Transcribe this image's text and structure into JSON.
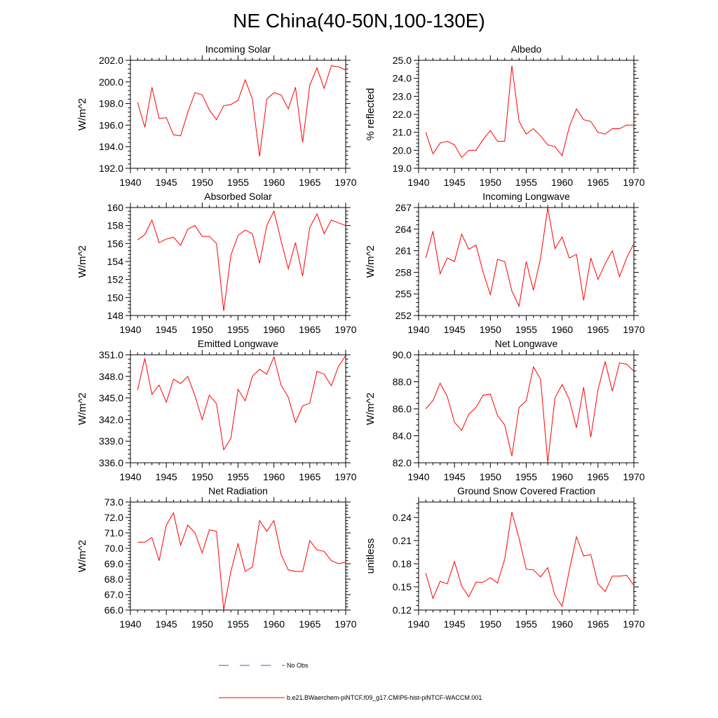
{
  "page": {
    "title": "NE China(40-50N,100-130E)"
  },
  "legend": {
    "entries": [
      {
        "label": "No Obs",
        "color": "#4a55c8",
        "style": "dashed"
      },
      {
        "label": "b.e21.BWaerchem-piNTCF.f09_g17.CMIP6-hist-piNTCF-WACCM.001",
        "color": "#ff0000",
        "style": "solid"
      }
    ]
  },
  "chart_data": [
    {
      "type": "line",
      "title": "Incoming Solar",
      "ylabel": "W/m^2",
      "xlim": [
        1940,
        1970
      ],
      "ylim": [
        192,
        202
      ],
      "xticks": [
        1940,
        1945,
        1950,
        1955,
        1960,
        1965,
        1970
      ],
      "yticks": [
        192,
        194,
        196,
        198,
        200,
        202
      ],
      "ytick_labels": [
        "192.0",
        "194.0",
        "196.0",
        "198.0",
        "200.0",
        "202.0"
      ],
      "series": [
        {
          "color": "#ff0000",
          "x": [
            1941,
            1942,
            1943,
            1944,
            1945,
            1946,
            1947,
            1948,
            1949,
            1950,
            1951,
            1952,
            1953,
            1954,
            1955,
            1956,
            1957,
            1958,
            1959,
            1960,
            1961,
            1962,
            1963,
            1964,
            1965,
            1966,
            1967,
            1968,
            1969,
            1970
          ],
          "y": [
            198.1,
            195.8,
            199.5,
            196.6,
            196.7,
            195.1,
            195.0,
            197.2,
            199.0,
            198.8,
            197.4,
            196.5,
            197.8,
            197.9,
            198.3,
            200.2,
            198.4,
            193.1,
            198.4,
            199.0,
            198.8,
            197.5,
            199.5,
            194.4,
            199.7,
            201.3,
            199.4,
            201.5,
            201.4,
            201.1
          ]
        }
      ]
    },
    {
      "type": "line",
      "title": "Albedo",
      "ylabel": "% reflected",
      "xlim": [
        1940,
        1970
      ],
      "ylim": [
        19,
        25
      ],
      "xticks": [
        1940,
        1945,
        1950,
        1955,
        1960,
        1965,
        1970
      ],
      "yticks": [
        19,
        20,
        21,
        22,
        23,
        24,
        25
      ],
      "ytick_labels": [
        "19.0",
        "20.0",
        "21.0",
        "22.0",
        "23.0",
        "24.0",
        "25.0"
      ],
      "series": [
        {
          "color": "#ff0000",
          "x": [
            1941,
            1942,
            1943,
            1944,
            1945,
            1946,
            1947,
            1948,
            1949,
            1950,
            1951,
            1952,
            1953,
            1954,
            1955,
            1956,
            1957,
            1958,
            1959,
            1960,
            1961,
            1962,
            1963,
            1964,
            1965,
            1966,
            1967,
            1968,
            1969,
            1970
          ],
          "y": [
            21.0,
            19.8,
            20.4,
            20.5,
            20.3,
            19.6,
            20.0,
            20.0,
            20.6,
            21.1,
            20.5,
            20.5,
            24.7,
            21.6,
            20.9,
            21.2,
            20.8,
            20.3,
            20.2,
            19.7,
            21.3,
            22.3,
            21.7,
            21.6,
            21.0,
            20.9,
            21.2,
            21.2,
            21.4,
            21.4
          ]
        }
      ]
    },
    {
      "type": "line",
      "title": "Absorbed Solar",
      "ylabel": "W/m^2",
      "xlim": [
        1940,
        1970
      ],
      "ylim": [
        148,
        160
      ],
      "xticks": [
        1940,
        1945,
        1950,
        1955,
        1960,
        1965,
        1970
      ],
      "yticks": [
        148,
        150,
        152,
        154,
        156,
        158,
        160
      ],
      "ytick_labels": [
        "148",
        "150",
        "152",
        "154",
        "156",
        "158",
        "160"
      ],
      "series": [
        {
          "color": "#ff0000",
          "x": [
            1941,
            1942,
            1943,
            1944,
            1945,
            1946,
            1947,
            1948,
            1949,
            1950,
            1951,
            1952,
            1953,
            1954,
            1955,
            1956,
            1957,
            1958,
            1959,
            1960,
            1961,
            1962,
            1963,
            1964,
            1965,
            1966,
            1967,
            1968,
            1969,
            1970
          ],
          "y": [
            156.4,
            157.0,
            158.6,
            156.1,
            156.5,
            156.7,
            155.8,
            157.6,
            158.0,
            156.8,
            156.8,
            156.0,
            148.5,
            154.7,
            156.9,
            157.5,
            157.1,
            153.8,
            158.0,
            159.6,
            156.3,
            153.2,
            156.1,
            152.4,
            157.8,
            159.3,
            157.1,
            158.6,
            158.3,
            158.0
          ]
        }
      ]
    },
    {
      "type": "line",
      "title": "Incoming Longwave",
      "ylabel": "W/m^2",
      "xlim": [
        1940,
        1970
      ],
      "ylim": [
        252,
        267
      ],
      "xticks": [
        1940,
        1945,
        1950,
        1955,
        1960,
        1965,
        1970
      ],
      "yticks": [
        252,
        255,
        258,
        261,
        264,
        267
      ],
      "ytick_labels": [
        "252",
        "255",
        "258",
        "261",
        "264",
        "267"
      ],
      "series": [
        {
          "color": "#ff0000",
          "x": [
            1941,
            1942,
            1943,
            1944,
            1945,
            1946,
            1947,
            1948,
            1949,
            1950,
            1951,
            1952,
            1953,
            1954,
            1955,
            1956,
            1957,
            1958,
            1959,
            1960,
            1961,
            1962,
            1963,
            1964,
            1965,
            1966,
            1967,
            1968,
            1969,
            1970
          ],
          "y": [
            260.0,
            263.7,
            257.8,
            260.0,
            259.5,
            263.3,
            261.2,
            261.8,
            258.0,
            254.9,
            259.8,
            259.5,
            255.4,
            253.3,
            259.5,
            255.5,
            260.0,
            267.0,
            261.3,
            262.9,
            260.0,
            260.5,
            254.1,
            260.0,
            257.0,
            259.2,
            261.0,
            257.4,
            260.0,
            262.0
          ]
        }
      ]
    },
    {
      "type": "line",
      "title": "Emitted Longwave",
      "ylabel": "W/m^2",
      "xlim": [
        1940,
        1970
      ],
      "ylim": [
        336,
        351
      ],
      "xticks": [
        1940,
        1945,
        1950,
        1955,
        1960,
        1965,
        1970
      ],
      "yticks": [
        336,
        339,
        342,
        345,
        348,
        351
      ],
      "ytick_labels": [
        "336.0",
        "339.0",
        "342.0",
        "345.0",
        "348.0",
        "351.0"
      ],
      "series": [
        {
          "color": "#ff0000",
          "x": [
            1941,
            1942,
            1943,
            1944,
            1945,
            1946,
            1947,
            1948,
            1949,
            1950,
            1951,
            1952,
            1953,
            1954,
            1955,
            1956,
            1957,
            1958,
            1959,
            1960,
            1961,
            1962,
            1963,
            1964,
            1965,
            1966,
            1967,
            1968,
            1969,
            1970
          ],
          "y": [
            346.1,
            350.5,
            345.5,
            346.8,
            344.4,
            347.6,
            347.0,
            348.0,
            345.3,
            342.0,
            345.4,
            344.2,
            337.8,
            339.4,
            346.2,
            344.6,
            348.0,
            349.0,
            348.3,
            350.7,
            346.8,
            345.1,
            341.6,
            343.9,
            344.3,
            348.7,
            348.3,
            346.7,
            349.4,
            350.9
          ]
        }
      ]
    },
    {
      "type": "line",
      "title": "Net Longwave",
      "ylabel": "W/m^2",
      "xlim": [
        1940,
        1970
      ],
      "ylim": [
        82,
        90
      ],
      "xticks": [
        1940,
        1945,
        1950,
        1955,
        1960,
        1965,
        1970
      ],
      "yticks": [
        82,
        84,
        86,
        88,
        90
      ],
      "ytick_labels": [
        "82.0",
        "84.0",
        "86.0",
        "88.0",
        "90.0"
      ],
      "series": [
        {
          "color": "#ff0000",
          "x": [
            1941,
            1942,
            1943,
            1944,
            1945,
            1946,
            1947,
            1948,
            1949,
            1950,
            1951,
            1952,
            1953,
            1954,
            1955,
            1956,
            1957,
            1958,
            1959,
            1960,
            1961,
            1962,
            1963,
            1964,
            1965,
            1966,
            1967,
            1968,
            1969,
            1970
          ],
          "y": [
            86.0,
            86.6,
            87.9,
            86.9,
            85.0,
            84.4,
            85.6,
            86.1,
            87.0,
            87.1,
            85.5,
            84.8,
            82.5,
            86.1,
            86.6,
            89.1,
            88.2,
            82.0,
            86.8,
            87.8,
            86.7,
            84.6,
            87.6,
            83.9,
            87.4,
            89.5,
            87.3,
            89.4,
            89.3,
            88.8
          ]
        }
      ]
    },
    {
      "type": "line",
      "title": "Net Radiation",
      "ylabel": "W/m^2",
      "xlim": [
        1940,
        1970
      ],
      "ylim": [
        66,
        73
      ],
      "xticks": [
        1940,
        1945,
        1950,
        1955,
        1960,
        1965,
        1970
      ],
      "yticks": [
        66,
        67,
        68,
        69,
        70,
        71,
        72,
        73
      ],
      "ytick_labels": [
        "66.0",
        "67.0",
        "68.0",
        "69.0",
        "70.0",
        "71.0",
        "72.0",
        "73.0"
      ],
      "series": [
        {
          "color": "#ff0000",
          "x": [
            1941,
            1942,
            1943,
            1944,
            1945,
            1946,
            1947,
            1948,
            1949,
            1950,
            1951,
            1952,
            1953,
            1954,
            1955,
            1956,
            1957,
            1958,
            1959,
            1960,
            1961,
            1962,
            1963,
            1964,
            1965,
            1966,
            1967,
            1968,
            1969,
            1970
          ],
          "y": [
            70.4,
            70.4,
            70.7,
            69.2,
            71.5,
            72.3,
            70.2,
            71.5,
            71.0,
            69.7,
            71.2,
            71.1,
            66.0,
            68.5,
            70.3,
            68.5,
            68.8,
            71.8,
            71.1,
            71.8,
            69.6,
            68.6,
            68.5,
            68.5,
            70.5,
            69.9,
            69.8,
            69.2,
            69.0,
            69.1
          ]
        }
      ]
    },
    {
      "type": "line",
      "title": "Ground Snow Covered Fraction",
      "ylabel": "unitless",
      "xlim": [
        1940,
        1970
      ],
      "ylim": [
        0.12,
        0.26
      ],
      "xticks": [
        1940,
        1945,
        1950,
        1955,
        1960,
        1965,
        1970
      ],
      "yticks": [
        0.12,
        0.15,
        0.18,
        0.21,
        0.24
      ],
      "ytick_labels": [
        "0.12",
        "0.15",
        "0.18",
        "0.21",
        "0.24"
      ],
      "series": [
        {
          "color": "#ff0000",
          "x": [
            1941,
            1942,
            1943,
            1944,
            1945,
            1946,
            1947,
            1948,
            1949,
            1950,
            1951,
            1952,
            1953,
            1954,
            1955,
            1956,
            1957,
            1958,
            1959,
            1960,
            1961,
            1962,
            1963,
            1964,
            1965,
            1966,
            1967,
            1968,
            1969,
            1970
          ],
          "y": [
            0.168,
            0.135,
            0.157,
            0.154,
            0.183,
            0.151,
            0.137,
            0.156,
            0.156,
            0.162,
            0.155,
            0.186,
            0.247,
            0.213,
            0.173,
            0.172,
            0.163,
            0.175,
            0.139,
            0.125,
            0.171,
            0.215,
            0.19,
            0.192,
            0.154,
            0.144,
            0.164,
            0.164,
            0.165,
            0.152
          ]
        }
      ]
    }
  ]
}
